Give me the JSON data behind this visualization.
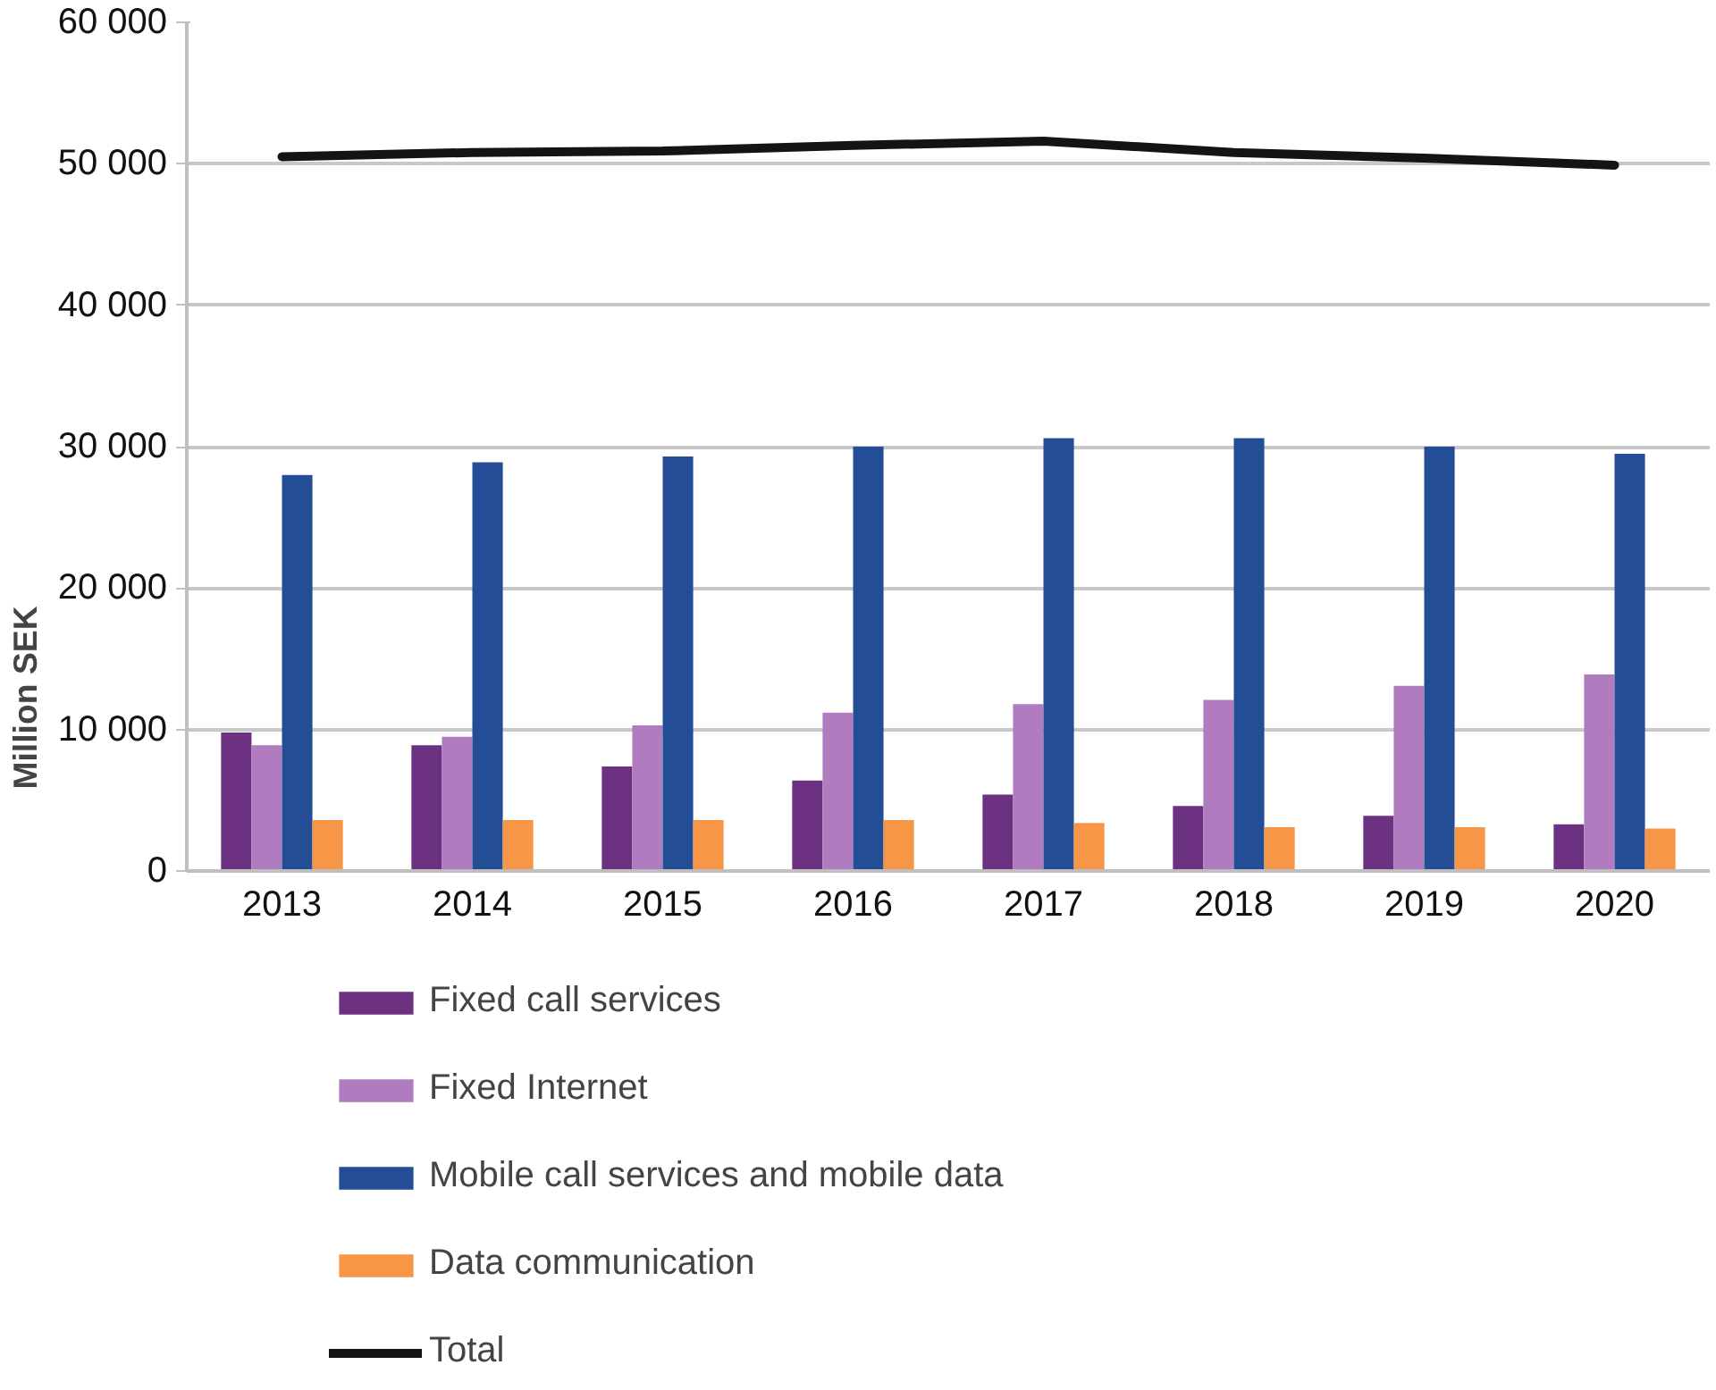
{
  "chart_data": {
    "type": "bar",
    "ylabel": "Million SEK",
    "categories": [
      "2013",
      "2014",
      "2015",
      "2016",
      "2017",
      "2018",
      "2019",
      "2020"
    ],
    "series": [
      {
        "name": "Fixed call services",
        "color": "#6c3181",
        "values": [
          9800,
          8900,
          7400,
          6400,
          5400,
          4600,
          3900,
          3300
        ]
      },
      {
        "name": "Fixed Internet",
        "color": "#b07cbf",
        "values": [
          8900,
          9500,
          10300,
          11200,
          11800,
          12100,
          13100,
          13900
        ]
      },
      {
        "name": "Mobile call services and mobile data",
        "color": "#234e96",
        "values": [
          28000,
          28900,
          29300,
          30000,
          30600,
          30600,
          30000,
          29500
        ]
      },
      {
        "name": "Data communication",
        "color": "#f69646",
        "values": [
          3600,
          3600,
          3600,
          3600,
          3400,
          3100,
          3100,
          3000
        ]
      },
      {
        "name": "Total",
        "type": "line",
        "color": "#141414",
        "values": [
          50500,
          50800,
          50900,
          51300,
          51600,
          50800,
          50400,
          49900
        ]
      }
    ],
    "ylim": [
      0,
      60000
    ],
    "yticks": [
      {
        "value": 0,
        "label": "0"
      },
      {
        "value": 10000,
        "label": "10 000"
      },
      {
        "value": 20000,
        "label": "20 000"
      },
      {
        "value": 30000,
        "label": "30 000"
      },
      {
        "value": 40000,
        "label": "40 000"
      },
      {
        "value": 50000,
        "label": "50 000"
      },
      {
        "value": 60000,
        "label": "60 000"
      }
    ],
    "grid": "y",
    "legend": "bottom"
  }
}
